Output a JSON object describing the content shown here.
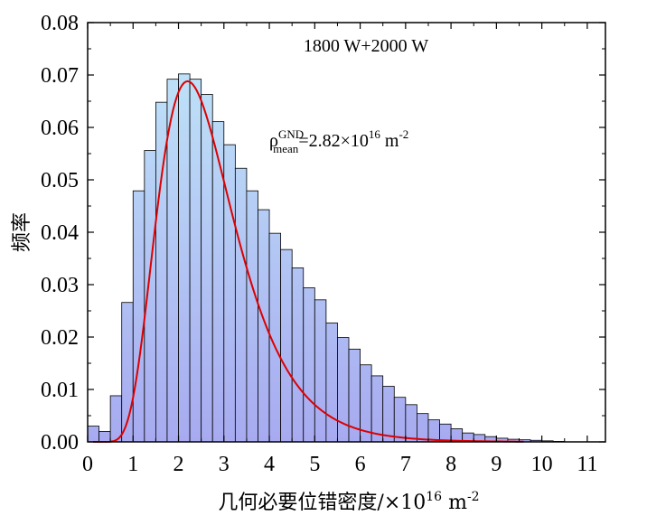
{
  "chart_data": {
    "type": "bar",
    "xlabel_main": "几何必要位错密度/×10",
    "xlabel_exp": "16",
    "xlabel_unit": " m",
    "xlabel_unit_exp": "-2",
    "ylabel": "频率",
    "xlim": [
      0,
      11.4
    ],
    "ylim": [
      0,
      0.08
    ],
    "xticks": [
      "0",
      "1",
      "2",
      "3",
      "4",
      "5",
      "6",
      "7",
      "8",
      "9",
      "10",
      "11"
    ],
    "yticks": [
      "0.00",
      "0.01",
      "0.02",
      "0.03",
      "0.04",
      "0.05",
      "0.06",
      "0.07",
      "0.08"
    ],
    "bin_width": 0.25,
    "bin_start": 0,
    "values": [
      0.003,
      0.002,
      0.0088,
      0.0266,
      0.0479,
      0.0556,
      0.0648,
      0.0692,
      0.0702,
      0.0692,
      0.0663,
      0.0611,
      0.0567,
      0.0522,
      0.0479,
      0.0443,
      0.0398,
      0.0367,
      0.0332,
      0.0294,
      0.0271,
      0.0227,
      0.0199,
      0.0177,
      0.0147,
      0.0126,
      0.0106,
      0.0085,
      0.0071,
      0.0054,
      0.0042,
      0.0034,
      0.0025,
      0.0017,
      0.0014,
      0.001,
      0.0007,
      0.0005,
      0.0004,
      0.0003,
      0.0002,
      0.0001
    ],
    "fit_curve": {
      "type": "lognormal",
      "mode": 2.2,
      "peak": 0.0688,
      "sigma": 0.385
    },
    "legend_text": "1800 W+2000 W",
    "annotation": {
      "rho": "ρ",
      "sup": "GND",
      "sub": "mean",
      "value": "=2.82×10",
      "exp": "16",
      "unit": " m",
      "unit_exp": "-2"
    },
    "colors": {
      "bar_top": "#bfe4f8",
      "bar_bottom": "#a7aaf0",
      "bar_edge": "#000000",
      "curve": "#dd0000"
    }
  }
}
